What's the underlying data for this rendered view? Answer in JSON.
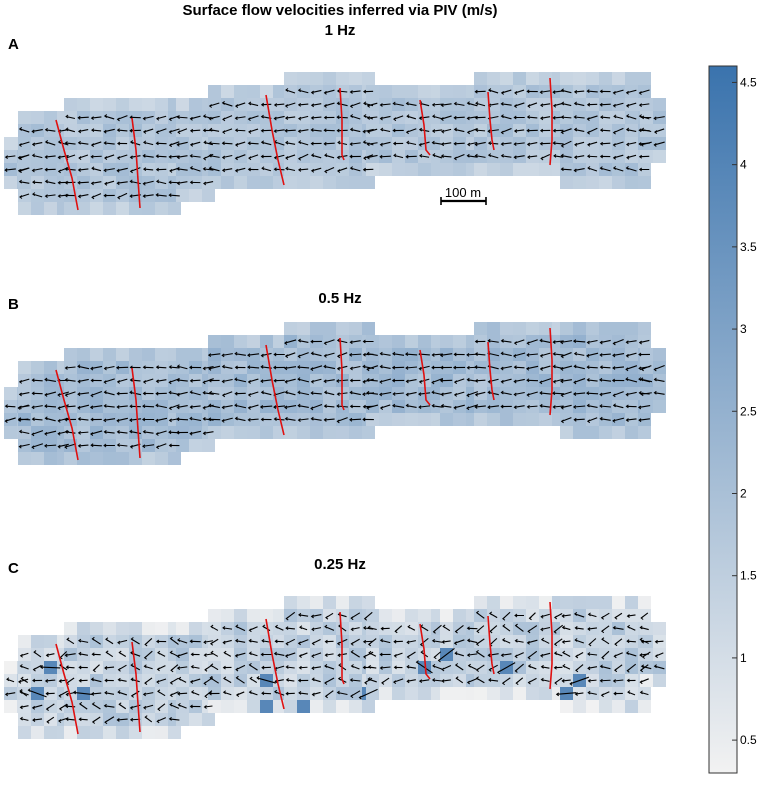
{
  "figure": {
    "title": "Surface flow velocities inferred via PIV (m/s)",
    "colormap": [
      "#f2f2f2",
      "#3a73ad"
    ]
  },
  "chart_data": [
    {
      "type": "heatmap",
      "panel_label": "A",
      "title": "1 Hz",
      "scale_bar_label": "100 m",
      "velocity_range": [
        0.3,
        4.6
      ],
      "typical_velocity": 1.8,
      "variability": 0.35,
      "vector_noise": 0.25,
      "outlier_cells": 0
    },
    {
      "type": "heatmap",
      "panel_label": "B",
      "title": "0.5 Hz",
      "velocity_range": [
        0.3,
        4.6
      ],
      "typical_velocity": 2.1,
      "variability": 0.4,
      "vector_noise": 0.2,
      "outlier_cells": 0
    },
    {
      "type": "heatmap",
      "panel_label": "C",
      "title": "0.25 Hz",
      "velocity_range": [
        0.3,
        4.6
      ],
      "typical_velocity": 1.4,
      "variability": 0.6,
      "vector_noise": 0.45,
      "outlier_cells": 12
    },
    {
      "type": "colorbar",
      "ticks": [
        0.5,
        1,
        1.5,
        2,
        2.5,
        3,
        3.5,
        4,
        4.5
      ],
      "tick_labels": [
        "0.5",
        "1",
        "1.5",
        "2",
        "2.5",
        "3",
        "3.5",
        "4",
        "4.5"
      ],
      "range": [
        0.3,
        4.6
      ]
    }
  ]
}
